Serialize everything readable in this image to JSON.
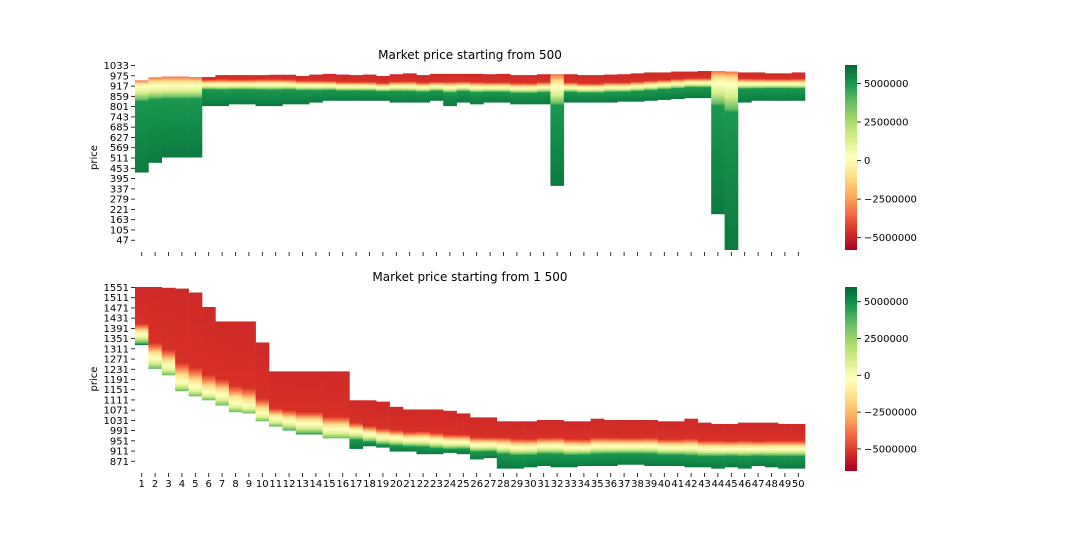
{
  "chart_data": [
    {
      "type": "heatmap",
      "title": "Market price starting from 500",
      "ylabel": "price",
      "xlabel": "",
      "x": [
        1,
        2,
        3,
        4,
        5,
        6,
        7,
        8,
        9,
        10,
        11,
        12,
        13,
        14,
        15,
        16,
        17,
        18,
        19,
        20,
        21,
        22,
        23,
        24,
        25,
        26,
        27,
        28,
        29,
        30,
        31,
        32,
        33,
        34,
        35,
        36,
        37,
        38,
        39,
        40,
        41,
        42,
        43,
        44,
        45,
        46,
        47,
        48,
        49,
        50
      ],
      "show_x_tick_labels": false,
      "ytick_labels": [
        1033,
        975,
        917,
        859,
        801,
        743,
        685,
        627,
        569,
        511,
        453,
        395,
        337,
        279,
        221,
        163,
        105,
        47
      ],
      "ylim": [
        18,
        1062
      ],
      "columns_mid": [
        940,
        945,
        945,
        945,
        945,
        950,
        950,
        950,
        950,
        950,
        950,
        950,
        945,
        945,
        945,
        940,
        940,
        940,
        935,
        940,
        940,
        935,
        940,
        935,
        940,
        935,
        935,
        935,
        930,
        930,
        935,
        935,
        935,
        930,
        930,
        935,
        935,
        940,
        945,
        950,
        955,
        960,
        960,
        960,
        955,
        955,
        955,
        955,
        955,
        955
      ],
      "columns_top": [
        975,
        992,
        997,
        997,
        994,
        994,
        1005,
        1005,
        1005,
        1005,
        1007,
        1007,
        1000,
        1008,
        1012,
        1008,
        1005,
        1008,
        1000,
        1010,
        1015,
        1005,
        1012,
        1012,
        1012,
        1012,
        1010,
        1012,
        1005,
        1005,
        1010,
        1010,
        1010,
        1005,
        1005,
        1008,
        1010,
        1015,
        1020,
        1020,
        1025,
        1025,
        1028,
        1028,
        1025,
        1020,
        1020,
        1015,
        1015,
        1020
      ],
      "columns_bottom": [
        455,
        510,
        540,
        540,
        540,
        830,
        830,
        840,
        840,
        830,
        830,
        840,
        840,
        850,
        860,
        860,
        860,
        860,
        860,
        850,
        850,
        850,
        860,
        830,
        850,
        840,
        850,
        850,
        840,
        840,
        840,
        380,
        850,
        850,
        850,
        850,
        855,
        855,
        860,
        865,
        870,
        875,
        875,
        220,
        18,
        850,
        860,
        860,
        860,
        860
      ],
      "colorbar": {
        "ticks": [
          5000000,
          2500000,
          0,
          -2500000,
          -5000000
        ],
        "tick_labels": [
          "5000000",
          "2500000",
          "0",
          "−2500000",
          "−5000000"
        ],
        "range": [
          -5800000,
          6200000
        ]
      },
      "colormap": "RdYlGn"
    },
    {
      "type": "heatmap",
      "title": "Market price starting from 1 500",
      "ylabel": "price",
      "xlabel": "",
      "x": [
        1,
        2,
        3,
        4,
        5,
        6,
        7,
        8,
        9,
        10,
        11,
        12,
        13,
        14,
        15,
        16,
        17,
        18,
        19,
        20,
        21,
        22,
        23,
        24,
        25,
        26,
        27,
        28,
        29,
        30,
        31,
        32,
        33,
        34,
        35,
        36,
        37,
        38,
        39,
        40,
        41,
        42,
        43,
        44,
        45,
        46,
        47,
        48,
        49,
        50
      ],
      "show_x_tick_labels": true,
      "ytick_labels": [
        1551,
        1511,
        1471,
        1431,
        1391,
        1351,
        1311,
        1271,
        1231,
        1191,
        1151,
        1111,
        1071,
        1031,
        991,
        951,
        911,
        871
      ],
      "ylim": [
        861,
        1561
      ],
      "columns_mid": [
        1380,
        1290,
        1260,
        1200,
        1180,
        1160,
        1150,
        1120,
        1110,
        1080,
        1060,
        1050,
        1040,
        1040,
        1020,
        1020,
        1010,
        1000,
        990,
        985,
        980,
        980,
        975,
        970,
        970,
        960,
        960,
        955,
        950,
        950,
        955,
        955,
        950,
        950,
        955,
        955,
        955,
        955,
        955,
        950,
        950,
        950,
        945,
        945,
        945,
        945,
        945,
        945,
        945,
        945
      ],
      "columns_top": [
        1561,
        1561,
        1558,
        1555,
        1540,
        1485,
        1430,
        1430,
        1430,
        1350,
        1240,
        1240,
        1240,
        1240,
        1240,
        1240,
        1130,
        1130,
        1125,
        1105,
        1095,
        1095,
        1095,
        1090,
        1080,
        1065,
        1065,
        1050,
        1050,
        1050,
        1055,
        1055,
        1050,
        1050,
        1060,
        1055,
        1055,
        1055,
        1055,
        1050,
        1050,
        1060,
        1045,
        1040,
        1040,
        1045,
        1045,
        1045,
        1040,
        1040
      ],
      "columns_bottom": [
        1340,
        1250,
        1225,
        1165,
        1145,
        1130,
        1110,
        1085,
        1080,
        1050,
        1030,
        1015,
        1000,
        1000,
        985,
        985,
        945,
        955,
        950,
        935,
        935,
        925,
        925,
        930,
        925,
        905,
        910,
        870,
        870,
        875,
        880,
        875,
        875,
        880,
        880,
        880,
        885,
        885,
        880,
        880,
        880,
        875,
        875,
        870,
        875,
        870,
        880,
        875,
        870,
        870
      ],
      "colorbar": {
        "ticks": [
          5000000,
          2500000,
          0,
          -2500000,
          -5000000
        ],
        "tick_labels": [
          "5000000",
          "2500000",
          "0",
          "−2500000",
          "−5000000"
        ],
        "range": [
          -6500000,
          6000000
        ]
      },
      "colormap": "RdYlGn"
    }
  ]
}
